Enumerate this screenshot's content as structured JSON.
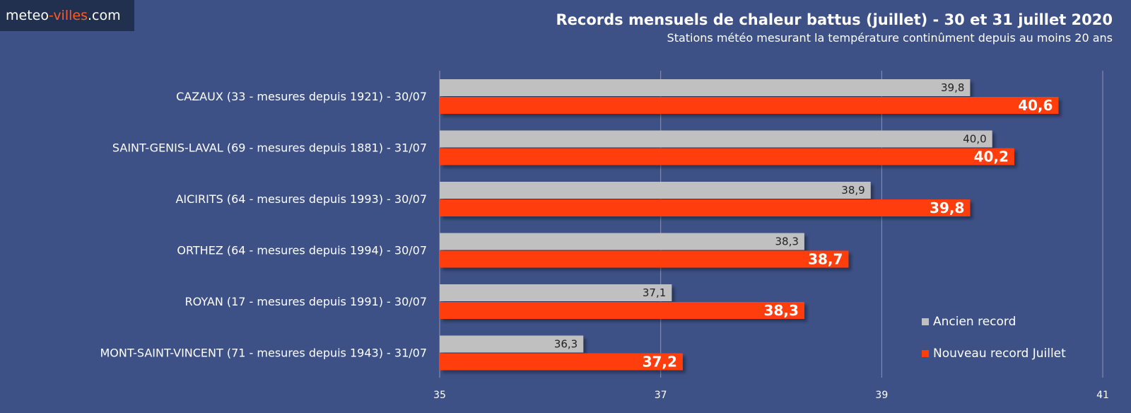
{
  "brand": {
    "part1": "meteo",
    "part2": "-villes",
    "part3": ".com"
  },
  "header": {
    "title": "Records mensuels de chaleur battus (juillet) - 30 et 31 juillet 2020",
    "subtitle": "Stations météo mesurant la température continûment depuis au moins 20 ans"
  },
  "chart_data": {
    "type": "bar",
    "orientation": "horizontal",
    "categories": [
      "CAZAUX (33 - mesures depuis 1921) - 30/07",
      "SAINT-GENIS-LAVAL (69 - mesures depuis 1881) - 31/07",
      "AICIRITS (64 - mesures depuis 1993) - 30/07",
      "ORTHEZ (64 - mesures depuis 1994) - 30/07",
      "ROYAN (17 - mesures depuis 1991) - 30/07",
      "MONT-SAINT-VINCENT (71 - mesures depuis 1943) - 31/07"
    ],
    "series": [
      {
        "name": "Ancien record",
        "color": "#c0c0c0",
        "values": [
          39.8,
          40.0,
          38.9,
          38.3,
          37.1,
          36.3
        ],
        "labels": [
          "39,8",
          "40,0",
          "38,9",
          "38,3",
          "37,1",
          "36,3"
        ]
      },
      {
        "name": "Nouveau record Juillet",
        "color": "#ff3d0b",
        "values": [
          40.6,
          40.2,
          39.8,
          38.7,
          38.3,
          37.2
        ],
        "labels": [
          "40,6",
          "40,2",
          "39,8",
          "38,7",
          "38,3",
          "37,2"
        ]
      }
    ],
    "xlim": [
      35,
      41
    ],
    "xticks": [
      35,
      37,
      39,
      41
    ],
    "grid": true,
    "legend_position": "bottom-right"
  }
}
